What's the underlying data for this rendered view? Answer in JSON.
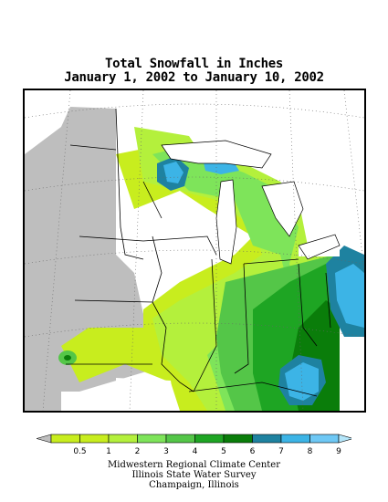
{
  "map": {
    "title_line1": "Total Snowfall in Inches",
    "title_line2": "January 1, 2002 to January 10, 2002",
    "region": "Midwestern United States",
    "no_data_color": "#bebebe",
    "background_color": "#ffffff"
  },
  "legend": {
    "min_label": "0.5",
    "classes": [
      {
        "label": "1",
        "color": "#c8ed1e"
      },
      {
        "label": "2",
        "color": "#b4f03c"
      },
      {
        "label": "3",
        "color": "#7ee45a"
      },
      {
        "label": "4",
        "color": "#54c648"
      },
      {
        "label": "5",
        "color": "#1ea523"
      },
      {
        "label": "6",
        "color": "#0a7d0a"
      },
      {
        "label": "7",
        "color": "#1e82a0"
      },
      {
        "label": "8",
        "color": "#3cb4e6"
      },
      {
        "label": "9",
        "color": "#6ec8f5"
      }
    ],
    "below_color": "#bebebe",
    "above_color": "#b4e6fa",
    "first_color": "#c8ed1e"
  },
  "credits": {
    "line1": "Midwestern Regional Climate Center",
    "line2": "Illinois State Water Survey",
    "line3": "Champaign, Illinois"
  }
}
